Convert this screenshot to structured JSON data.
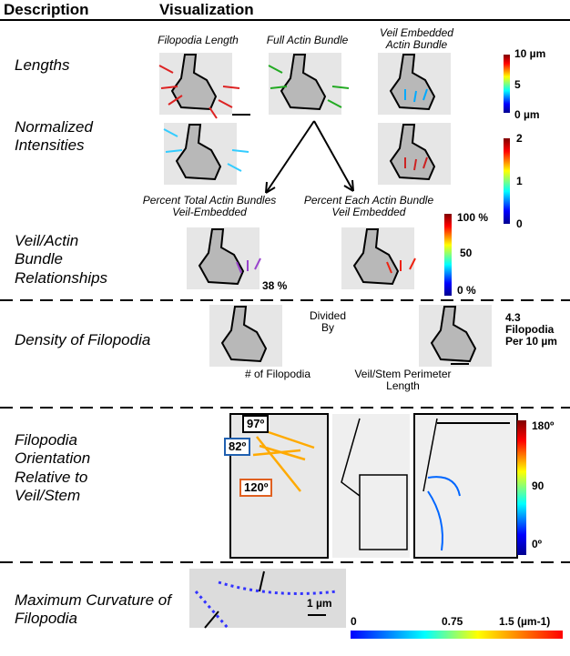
{
  "header": {
    "description": "Description",
    "visualization": "Visualization"
  },
  "rows": [
    {
      "description": "Lengths",
      "labels": [
        "Filopodia Length",
        "Full Actin Bundle",
        "Veil Embedded Actin Bundle"
      ],
      "colorbar": [
        "10 µm",
        "5",
        "0 µm"
      ]
    },
    {
      "description": "Normalized Intensities",
      "colorbar": [
        "2",
        "1",
        "0"
      ]
    },
    {
      "description": "Veil/Actin Bundle Relationships",
      "labels": [
        "Percent Total Actin Bundles Veil-Embedded",
        "Percent Each Actin Bundle Veil Embedded"
      ],
      "annotation": "38 %",
      "colorbar": [
        "100 %",
        "50",
        "0 %"
      ]
    },
    {
      "description": "Density of Filopodia",
      "labels": [
        "Divided By",
        "# of Filopodia",
        "Veil/Stem Perimeter Length"
      ],
      "annotation": "4.3 Filopodia Per 10 µm"
    },
    {
      "description": "Filopodia Orientation Relative to Veil/Stem",
      "angles": [
        "97º",
        "82º",
        "120º"
      ],
      "colorbar": [
        "180º",
        "90",
        "0º"
      ]
    },
    {
      "description": "Maximum Curvature of Filopodia",
      "scale": "1 µm",
      "colorbar": [
        "0",
        "0.75",
        "1.5 (µm-1)"
      ]
    }
  ]
}
